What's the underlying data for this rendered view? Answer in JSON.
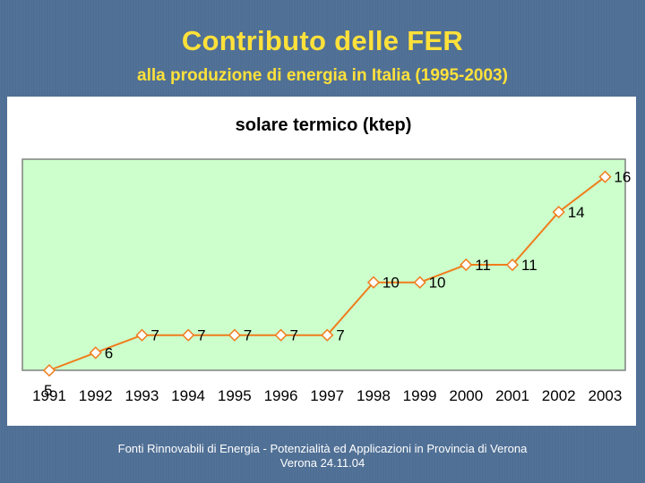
{
  "slide": {
    "title": "Contributo delle FER",
    "subtitle": "alla produzione di energia in Italia (1995-2003)"
  },
  "footer": {
    "line1": "Fonti Rinnovabili di Energia - Potenzialità ed Applicazioni in Provincia di Verona",
    "line2": "Verona 24.11.04"
  },
  "chart_data": {
    "type": "line",
    "title": "solare termico (ktep)",
    "xlabel": "",
    "ylabel": "",
    "categories": [
      "1991",
      "1992",
      "1993",
      "1994",
      "1995",
      "1996",
      "1997",
      "1998",
      "1999",
      "2000",
      "2001",
      "2002",
      "2003"
    ],
    "series": [
      {
        "values": [
          5,
          6,
          7,
          7,
          7,
          7,
          7,
          10,
          10,
          11,
          11,
          14,
          16
        ],
        "data_labels": [
          "5",
          "6",
          "7",
          "7",
          "7",
          "7",
          "7",
          "10",
          "10",
          "11",
          "11",
          "14",
          "16"
        ]
      }
    ],
    "ylim": [
      5,
      17
    ],
    "grid": false,
    "legend": "none",
    "colors": {
      "line": "#f07c1c",
      "marker_fill": "#ffffff",
      "plot_background": "#ccffcc",
      "plot_border": "#808080"
    }
  }
}
